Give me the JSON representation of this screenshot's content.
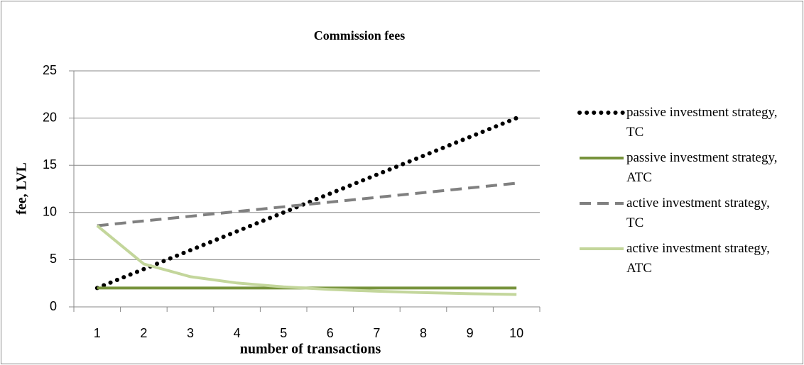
{
  "chart_data": {
    "type": "line",
    "title": "Commission fees",
    "x_label": "number of transactions",
    "y_label": "fee,  LVL",
    "categories": [
      "1",
      "2",
      "3",
      "4",
      "5",
      "6",
      "7",
      "8",
      "9",
      "10"
    ],
    "series": [
      {
        "name": "passive investment strategy, TC",
        "color": "#000000",
        "dash": "dotted",
        "values": [
          2,
          4,
          6,
          8,
          10,
          12,
          14,
          16,
          18,
          20
        ]
      },
      {
        "name": "passive investment strategy, ATC",
        "color": "#77933c",
        "dash": "solid",
        "values": [
          2,
          2,
          2,
          2,
          2,
          2,
          2,
          2,
          2,
          2
        ]
      },
      {
        "name": "active investment strategy, TC",
        "color": "#808080",
        "dash": "dashed",
        "values": [
          8.6,
          9.1,
          9.6,
          10.1,
          10.6,
          11.1,
          11.6,
          12.1,
          12.6,
          13.1
        ]
      },
      {
        "name": "active investment strategy, ATC",
        "color": "#c3d69b",
        "dash": "solid",
        "values": [
          8.6,
          4.55,
          3.2,
          2.53,
          2.12,
          1.85,
          1.66,
          1.51,
          1.4,
          1.31
        ]
      }
    ],
    "ylim": [
      0,
      25
    ],
    "yticks": [
      0,
      5,
      10,
      15,
      20,
      25
    ],
    "grid": true,
    "legend": "right"
  }
}
